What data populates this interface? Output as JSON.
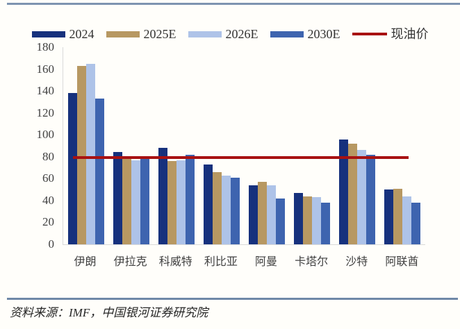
{
  "page": {
    "source_note": "资料来源：IMF，中国银河证券研究院"
  },
  "colors": {
    "top_rule": "#7e93b0",
    "bottom_rule": "#6f88a7",
    "axis_line": "#d9d9d9",
    "axis_label": "#404040"
  },
  "chart_data": {
    "type": "bar",
    "title": "",
    "xlabel": "",
    "ylabel": "",
    "categories": [
      "伊朗",
      "伊拉克",
      "科威特",
      "利比亚",
      "阿曼",
      "卡塔尔",
      "沙特",
      "阿联酋"
    ],
    "series": [
      {
        "name": "2024",
        "color": "#16317d",
        "values": [
          138,
          84,
          88,
          73,
          54,
          47,
          96,
          50
        ]
      },
      {
        "name": "2025E",
        "color": "#b79862",
        "values": [
          163,
          78,
          76,
          66,
          57,
          44,
          92,
          51
        ]
      },
      {
        "name": "2026E",
        "color": "#aec3e8",
        "values": [
          165,
          77,
          77,
          63,
          54,
          43,
          86,
          44
        ]
      },
      {
        "name": "2030E",
        "color": "#3e64af",
        "values": [
          133,
          78,
          82,
          61,
          42,
          38,
          82,
          38
        ]
      }
    ],
    "ref_line": {
      "name": "现油价",
      "value": 79,
      "color": "#a81212"
    },
    "ylim": [
      0,
      180
    ],
    "yticks": [
      0,
      20,
      40,
      60,
      80,
      100,
      120,
      140,
      160,
      180
    ],
    "legend_position": "top",
    "grid": false
  }
}
